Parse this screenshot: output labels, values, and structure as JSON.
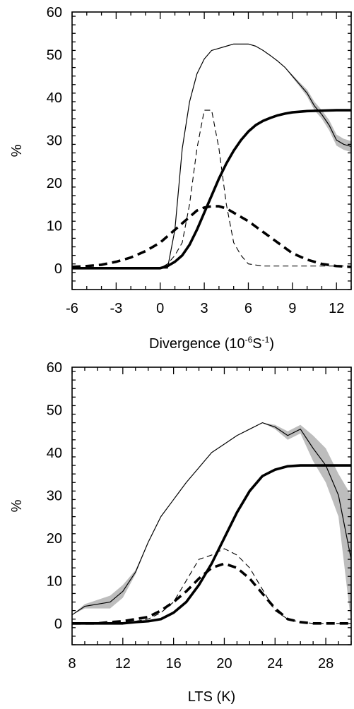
{
  "chart_data": [
    {
      "type": "line",
      "xlabel": "Divergence (10",
      "xlabel_sup1": "-6",
      "xlabel_mid": "S",
      "xlabel_sup2": "-1",
      "xlabel_end": ")",
      "ylabel": "%",
      "xlim": [
        -6,
        13
      ],
      "ylim": [
        -5,
        60
      ],
      "xticks": [
        "-6",
        "-3",
        "0",
        "3",
        "6",
        "9",
        "12"
      ],
      "xtick_values": [
        -6,
        -3,
        0,
        3,
        6,
        9,
        12
      ],
      "yticks": [
        "0",
        "10",
        "20",
        "30",
        "40",
        "50",
        "60"
      ],
      "ytick_values": [
        0,
        10,
        20,
        30,
        40,
        50,
        60
      ],
      "grid": false,
      "series": [
        {
          "style": "thin-solid",
          "x": [
            -6,
            -4,
            -2,
            0,
            0.5,
            1,
            1.5,
            2,
            2.5,
            3,
            3.5,
            4,
            4.5,
            5,
            6,
            6.5,
            7,
            7.5,
            8,
            8.5,
            9,
            9.5,
            10,
            10.5,
            11,
            11.5,
            12,
            12.5,
            13
          ],
          "y": [
            0,
            0,
            0,
            0,
            0,
            9,
            28,
            39,
            45.5,
            49,
            51,
            51.5,
            52,
            52.5,
            52.5,
            52,
            51,
            49.8,
            48.5,
            47,
            45,
            43,
            41,
            38,
            36,
            33.5,
            30,
            29,
            28.5
          ],
          "band": [
            0,
            0,
            0,
            0,
            0,
            0,
            0,
            0,
            0,
            0,
            0,
            0,
            0,
            0,
            0,
            0,
            0,
            0,
            0,
            0,
            0.3,
            0.5,
            0.8,
            1,
            1,
            1.2,
            1.3,
            1.3,
            1.3
          ]
        },
        {
          "style": "thin-dashed",
          "x": [
            -6,
            -2,
            0,
            0.5,
            1,
            1.5,
            2,
            2.5,
            3,
            3.5,
            4,
            4.5,
            5,
            5.5,
            6,
            7,
            8,
            9,
            10,
            11,
            12,
            13
          ],
          "y": [
            0,
            0,
            0,
            1,
            3,
            6,
            15,
            28,
            37,
            37,
            28,
            15,
            6,
            3,
            1,
            0.5,
            0.5,
            0.5,
            0.5,
            0.5,
            0.5,
            0.5
          ]
        },
        {
          "style": "thick-solid",
          "x": [
            -6,
            -4,
            -2,
            0,
            0.5,
            1,
            1.5,
            2,
            2.5,
            3,
            3.5,
            4,
            4.5,
            5,
            5.5,
            6,
            6.5,
            7,
            7.5,
            8,
            8.5,
            9,
            10,
            11,
            12,
            13
          ],
          "y": [
            0,
            0,
            0,
            0,
            0.5,
            1.5,
            3,
            5.5,
            9,
            13,
            17,
            21,
            24.5,
            27.5,
            30,
            32,
            33.5,
            34.5,
            35.2,
            35.8,
            36.2,
            36.5,
            36.8,
            36.9,
            37,
            37
          ]
        },
        {
          "style": "thick-dashed",
          "x": [
            -6,
            -5,
            -4,
            -3,
            -2,
            -1,
            0,
            0.5,
            1,
            1.5,
            2,
            2.5,
            3,
            3.5,
            4,
            4.5,
            5,
            6,
            7,
            8,
            9,
            10,
            11,
            12,
            13
          ],
          "y": [
            0.3,
            0.5,
            0.8,
            1.5,
            2.5,
            4,
            6,
            7.5,
            9,
            10.5,
            12,
            13.5,
            14.2,
            14.5,
            14.5,
            14,
            13,
            11,
            8.5,
            6,
            3.5,
            2,
            1,
            0.5,
            0.3
          ]
        }
      ]
    },
    {
      "type": "line",
      "xlabel": "LTS (K)",
      "ylabel": "%",
      "xlim": [
        8,
        30
      ],
      "ylim": [
        -5,
        60
      ],
      "xticks": [
        "8",
        "12",
        "16",
        "20",
        "24",
        "28"
      ],
      "xtick_values": [
        8,
        12,
        16,
        20,
        24,
        28
      ],
      "yticks": [
        "0",
        "10",
        "20",
        "30",
        "40",
        "50",
        "60"
      ],
      "ytick_values": [
        0,
        10,
        20,
        30,
        40,
        50,
        60
      ],
      "grid": false,
      "series": [
        {
          "style": "thin-solid",
          "x": [
            8,
            9,
            10,
            11,
            12,
            13,
            14,
            15,
            16,
            17,
            18,
            19,
            20,
            21,
            22,
            23,
            24,
            25,
            26,
            27,
            28,
            29,
            30
          ],
          "y": [
            2,
            4,
            4.5,
            5,
            7.5,
            12,
            19,
            25,
            29,
            33,
            36.5,
            40,
            42,
            44,
            45.5,
            47,
            46,
            44,
            45.5,
            41,
            37,
            30,
            15
          ],
          "band": [
            0,
            0.5,
            1,
            1.5,
            1.5,
            0.5,
            0,
            0,
            0,
            0,
            0,
            0,
            0,
            0,
            0,
            0,
            0.5,
            1,
            1,
            3,
            4,
            5,
            15
          ]
        },
        {
          "style": "thin-dashed",
          "x": [
            8,
            9,
            10,
            11,
            12,
            13,
            14,
            15,
            16,
            17,
            18,
            19,
            20,
            21,
            22,
            23,
            24,
            25,
            26,
            27,
            28,
            29,
            30
          ],
          "y": [
            0,
            0,
            0,
            0,
            0,
            0.5,
            1,
            2.5,
            5,
            10,
            15,
            16,
            17.5,
            16,
            13,
            8,
            3,
            1,
            0.3,
            0,
            0,
            0,
            0
          ]
        },
        {
          "style": "thick-solid",
          "x": [
            8,
            9,
            10,
            11,
            12,
            13,
            14,
            15,
            16,
            17,
            18,
            19,
            20,
            21,
            22,
            23,
            24,
            25,
            26,
            27,
            28,
            29,
            30
          ],
          "y": [
            0,
            0,
            0,
            0,
            0,
            0.3,
            0.5,
            1,
            2.5,
            5,
            9,
            14,
            20,
            26,
            31,
            34.5,
            36,
            36.8,
            37,
            37,
            37,
            37,
            37
          ]
        },
        {
          "style": "thick-dashed",
          "x": [
            8,
            9,
            10,
            11,
            12,
            13,
            14,
            15,
            16,
            17,
            18,
            19,
            20,
            21,
            22,
            23,
            24,
            25,
            26,
            27,
            28,
            29,
            30
          ],
          "y": [
            0,
            0,
            0,
            0.3,
            0.5,
            1,
            1.5,
            3,
            5,
            7.5,
            10.5,
            13,
            14,
            13,
            10.5,
            7,
            3.5,
            1,
            0.3,
            0,
            0,
            0,
            0
          ]
        }
      ]
    }
  ]
}
